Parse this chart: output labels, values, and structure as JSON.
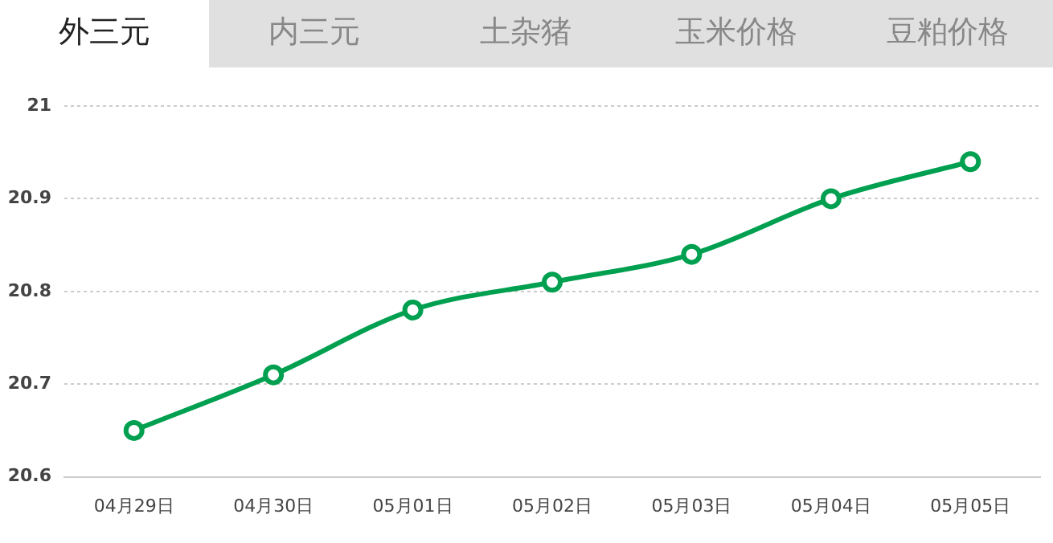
{
  "chart_data": {
    "type": "line",
    "title": "外三元",
    "annotations": [
      "内三元",
      "土杂猪",
      "玉米价格",
      "豆粕价格"
    ],
    "categories": [
      "04月29日",
      "04月30日",
      "05月01日",
      "05月02日",
      "05月03日",
      "05月04日",
      "05月05日"
    ],
    "series": [
      {
        "color": "#00a050",
        "values": [
          20.65,
          20.71,
          20.78,
          20.81,
          20.84,
          20.9,
          20.94
        ]
      }
    ],
    "ylim": [
      20.6,
      21
    ],
    "yticks": [
      20.6,
      20.7,
      20.8,
      20.9,
      21
    ],
    "grid": "y",
    "marker": "circle",
    "line_style": "solid",
    "legend": false
  }
}
